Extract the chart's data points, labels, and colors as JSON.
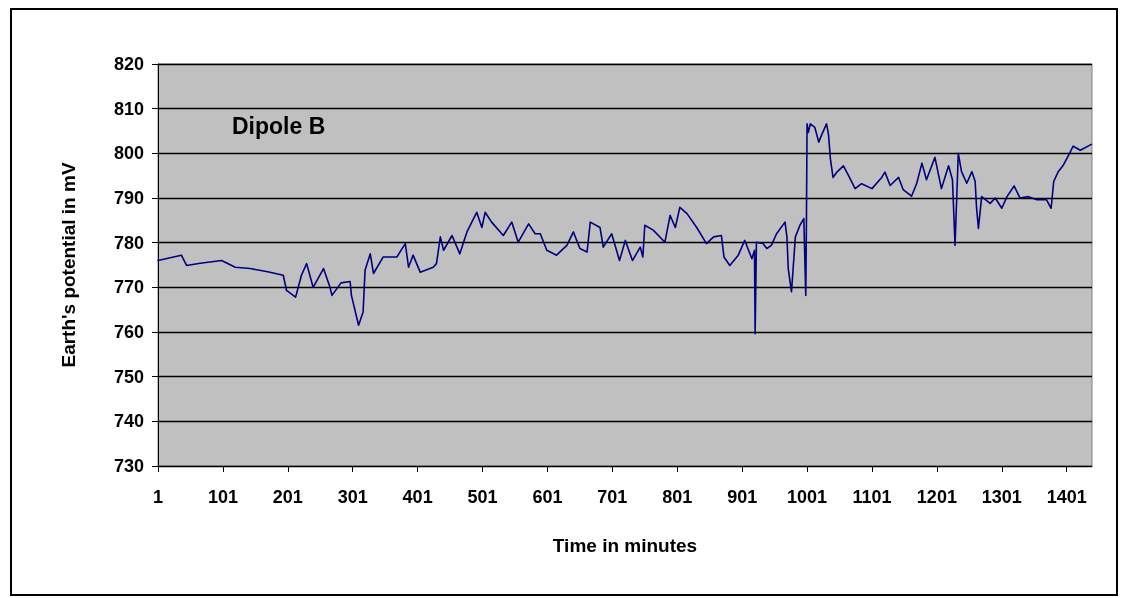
{
  "chart_data": {
    "type": "line",
    "xlabel": "Time in minutes",
    "ylabel": "Earth's potential in mV",
    "annotations": [
      "Dipole B"
    ],
    "x": [
      1,
      37,
      45,
      66,
      99,
      120,
      143,
      170,
      194,
      199,
      213,
      222,
      230,
      240,
      256,
      266,
      269,
      283,
      297,
      299,
      310,
      317,
      320,
      328,
      333,
      348,
      369,
      382,
      387,
      394,
      405,
      425,
      430,
      436,
      441,
      454,
      466,
      477,
      492,
      500,
      505,
      515,
      533,
      546,
      556,
      572,
      582,
      590,
      600,
      615,
      631,
      641,
      651,
      662,
      667,
      682,
      687,
      700,
      712,
      721,
      732,
      744,
      748,
      751,
      764,
      782,
      790,
      798,
      805,
      816,
      831,
      846,
      857,
      869,
      873,
      882,
      895,
      905,
      916,
      920,
      921,
      923,
      933,
      939,
      946,
      954,
      967,
      970,
      972,
      977,
      983,
      990,
      996,
      999,
      1000,
      1001,
      1003,
      1006,
      1013,
      1019,
      1024,
      1031,
      1034,
      1037,
      1041,
      1047,
      1057,
      1065,
      1075,
      1085,
      1101,
      1116,
      1121,
      1129,
      1142,
      1149,
      1162,
      1170,
      1178,
      1185,
      1198,
      1208,
      1219,
      1225,
      1229,
      1234,
      1239,
      1247,
      1255,
      1260,
      1262,
      1265,
      1270,
      1283,
      1291,
      1301,
      1309,
      1320,
      1329,
      1342,
      1355,
      1370,
      1377,
      1381,
      1388,
      1396,
      1404,
      1411,
      1422,
      1439
    ],
    "values": [
      776,
      777.2,
      774.9,
      775.4,
      776,
      774.5,
      774.2,
      773.5,
      772.7,
      769.3,
      767.8,
      772.7,
      775.3,
      770,
      774.2,
      770,
      768.2,
      771,
      771.3,
      768.2,
      761.5,
      764.5,
      773.8,
      777.5,
      773.1,
      776.8,
      776.8,
      779.8,
      774.5,
      777.2,
      773.4,
      774.5,
      775.3,
      781.3,
      778.3,
      781.6,
      777.5,
      782.4,
      786.8,
      783.4,
      786.8,
      784.6,
      781.6,
      784.6,
      780.1,
      784.2,
      782,
      782,
      778.3,
      777.2,
      779.4,
      782.4,
      778.7,
      777.9,
      784.6,
      783.4,
      779,
      782,
      776,
      780.5,
      776,
      779,
      776.8,
      783.9,
      782.8,
      780.1,
      786.1,
      783.4,
      787.9,
      786.5,
      783.4,
      779.8,
      781.3,
      781.6,
      776.8,
      774.9,
      777.2,
      780.5,
      776.4,
      778.3,
      759.6,
      780.1,
      779.8,
      778.7,
      779.4,
      782,
      784.6,
      781.3,
      774.2,
      769,
      781.3,
      783.9,
      785.4,
      768.2,
      784,
      806.6,
      804.7,
      806.6,
      805.8,
      802.5,
      804.3,
      806.6,
      804.3,
      798.7,
      794.6,
      795.8,
      797.2,
      795,
      792.1,
      793.2,
      792.1,
      794.6,
      795.8,
      792.8,
      794.6,
      791.9,
      790.4,
      793.3,
      797.8,
      794.1,
      799.1,
      792.1,
      797.2,
      794.1,
      779.4,
      800,
      795.9,
      793.3,
      795.9,
      793.7,
      788.1,
      783.2,
      790.3,
      788.8,
      790,
      787.7,
      790.3,
      792.7,
      790,
      790.3,
      789.6,
      789.6,
      787.7,
      793.7,
      795.9,
      797.4,
      799.6,
      801.6,
      800.7,
      802
    ],
    "color": "#000080",
    "marker": "none",
    "line_style": "solid",
    "xlim": [
      1,
      1440
    ],
    "xticks": [
      1,
      101,
      201,
      301,
      401,
      501,
      601,
      701,
      801,
      901,
      1001,
      1101,
      1201,
      1301,
      1401
    ],
    "ylim": [
      730,
      820
    ],
    "yticks": [
      730,
      740,
      750,
      760,
      770,
      780,
      790,
      800,
      810,
      820
    ],
    "grid": "y"
  }
}
